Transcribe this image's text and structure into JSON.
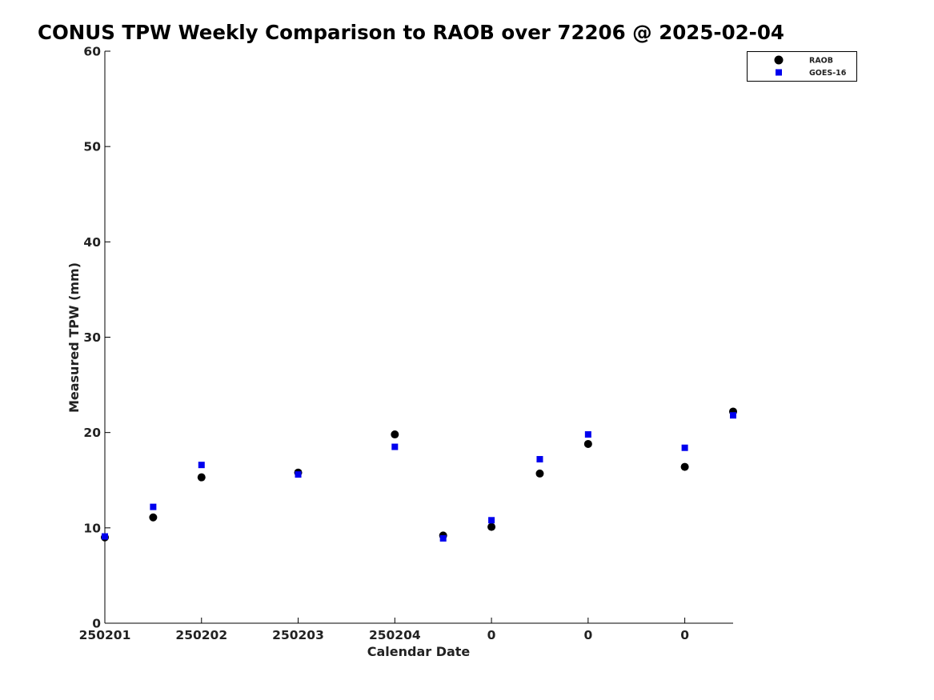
{
  "chart_data": {
    "type": "scatter",
    "title": "CONUS TPW Weekly Comparison to RAOB over 72206 @ 2025-02-04",
    "xlabel": "Calendar Date",
    "ylabel": "Measured TPW (mm)",
    "ylim": [
      0,
      60
    ],
    "yticks": [
      0,
      10,
      20,
      30,
      40,
      50,
      60
    ],
    "xlim": [
      0,
      13
    ],
    "xticks": [
      {
        "pos": 0,
        "label": "250201"
      },
      {
        "pos": 2,
        "label": "250202"
      },
      {
        "pos": 4,
        "label": "250203"
      },
      {
        "pos": 6,
        "label": "250204"
      },
      {
        "pos": 8,
        "label": "0"
      },
      {
        "pos": 10,
        "label": "0"
      },
      {
        "pos": 12,
        "label": "0"
      }
    ],
    "grid": false,
    "legend_position": "top-right",
    "series": [
      {
        "name": "RAOB",
        "marker": "circle",
        "color": "#000000",
        "points": [
          [
            0,
            9.0
          ],
          [
            1,
            11.1
          ],
          [
            2,
            15.3
          ],
          [
            4,
            15.8
          ],
          [
            6,
            19.8
          ],
          [
            7,
            9.2
          ],
          [
            8,
            10.1
          ],
          [
            9,
            15.7
          ],
          [
            10,
            18.8
          ],
          [
            12,
            16.4
          ],
          [
            13,
            22.2
          ]
        ]
      },
      {
        "name": "GOES-16",
        "marker": "square",
        "color": "#0000ee",
        "points": [
          [
            0,
            9.1
          ],
          [
            1,
            12.2
          ],
          [
            2,
            16.6
          ],
          [
            4,
            15.6
          ],
          [
            6,
            18.5
          ],
          [
            7,
            8.9
          ],
          [
            8,
            10.8
          ],
          [
            9,
            17.2
          ],
          [
            10,
            19.8
          ],
          [
            12,
            18.4
          ],
          [
            13,
            21.8
          ]
        ]
      }
    ]
  }
}
